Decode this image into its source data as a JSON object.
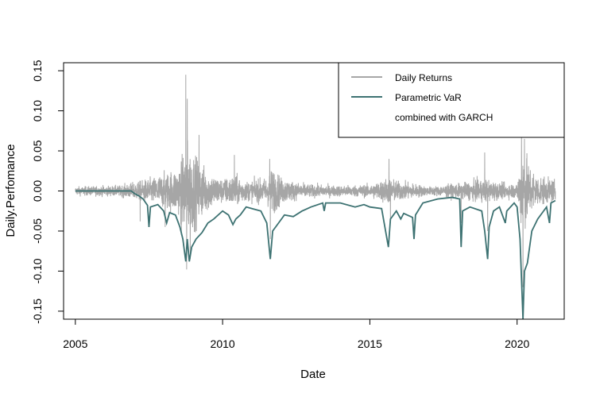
{
  "chart_data": {
    "type": "line",
    "title": "",
    "xlabel": "Date",
    "ylabel": "Daily.Perfomance",
    "xlim": [
      2004.6,
      2021.6
    ],
    "ylim": [
      -0.16,
      0.16
    ],
    "x_ticks": [
      2005,
      2010,
      2015,
      2020
    ],
    "x_tick_labels": [
      "2005",
      "2010",
      "2015",
      "2020"
    ],
    "y_ticks": [
      0.15,
      0.1,
      0.05,
      0.0,
      -0.05,
      -0.1,
      -0.15
    ],
    "y_tick_labels": [
      "0.15",
      "0.10",
      "0.05",
      "0.00",
      "-0.05",
      "-0.10",
      "-0.15"
    ],
    "grid": false,
    "legend": {
      "position": "top-right",
      "entries": [
        "Daily Returns",
        "Parametric VaR",
        "combined with GARCH"
      ]
    },
    "series": [
      {
        "name": "Daily Returns",
        "color": "#a6a6a6",
        "style": "volatile daily returns",
        "date_range": [
          2005.0,
          2021.3
        ],
        "volatility_profile": [
          [
            2005.0,
            0.004
          ],
          [
            2006.5,
            0.005
          ],
          [
            2007.0,
            0.008
          ],
          [
            2007.6,
            0.012
          ],
          [
            2008.0,
            0.016
          ],
          [
            2008.5,
            0.022
          ],
          [
            2008.8,
            0.045
          ],
          [
            2009.0,
            0.035
          ],
          [
            2009.5,
            0.018
          ],
          [
            2010.0,
            0.011
          ],
          [
            2010.4,
            0.015
          ],
          [
            2010.8,
            0.009
          ],
          [
            2011.5,
            0.012
          ],
          [
            2011.7,
            0.022
          ],
          [
            2012.0,
            0.012
          ],
          [
            2012.5,
            0.008
          ],
          [
            2013.0,
            0.006
          ],
          [
            2014.0,
            0.005
          ],
          [
            2015.0,
            0.006
          ],
          [
            2015.6,
            0.012
          ],
          [
            2016.0,
            0.009
          ],
          [
            2016.5,
            0.007
          ],
          [
            2017.0,
            0.004
          ],
          [
            2018.0,
            0.007
          ],
          [
            2018.9,
            0.011
          ],
          [
            2019.5,
            0.007
          ],
          [
            2020.0,
            0.007
          ],
          [
            2020.2,
            0.045
          ],
          [
            2020.4,
            0.025
          ],
          [
            2020.7,
            0.014
          ],
          [
            2021.3,
            0.01
          ]
        ],
        "extremes": [
          [
            2007.2,
            -0.038
          ],
          [
            2008.05,
            -0.045
          ],
          [
            2008.6,
            -0.055
          ],
          [
            2008.75,
            0.145
          ],
          [
            2008.8,
            0.115
          ],
          [
            2008.78,
            -0.098
          ],
          [
            2008.9,
            -0.085
          ],
          [
            2009.2,
            0.07
          ],
          [
            2010.4,
            0.045
          ],
          [
            2011.6,
            0.04
          ],
          [
            2011.62,
            -0.06
          ],
          [
            2015.65,
            0.04
          ],
          [
            2015.7,
            -0.04
          ],
          [
            2018.1,
            -0.04
          ],
          [
            2018.9,
            0.048
          ],
          [
            2019.0,
            -0.05
          ],
          [
            2020.15,
            0.07
          ],
          [
            2020.2,
            -0.12
          ],
          [
            2020.25,
            0.065
          ]
        ]
      },
      {
        "name": "Parametric VaR",
        "color": "#3d7272",
        "style": "GARCH VaR line",
        "points": [
          [
            2005.0,
            0.0
          ],
          [
            2006.9,
            0.0
          ],
          [
            2007.0,
            -0.003
          ],
          [
            2007.15,
            -0.006
          ],
          [
            2007.3,
            -0.01
          ],
          [
            2007.45,
            -0.018
          ],
          [
            2007.5,
            -0.045
          ],
          [
            2007.55,
            -0.02
          ],
          [
            2007.8,
            -0.017
          ],
          [
            2008.0,
            -0.025
          ],
          [
            2008.1,
            -0.04
          ],
          [
            2008.2,
            -0.027
          ],
          [
            2008.4,
            -0.03
          ],
          [
            2008.55,
            -0.045
          ],
          [
            2008.65,
            -0.06
          ],
          [
            2008.75,
            -0.088
          ],
          [
            2008.8,
            -0.06
          ],
          [
            2008.87,
            -0.088
          ],
          [
            2008.95,
            -0.07
          ],
          [
            2009.1,
            -0.06
          ],
          [
            2009.3,
            -0.052
          ],
          [
            2009.5,
            -0.04
          ],
          [
            2009.7,
            -0.035
          ],
          [
            2010.0,
            -0.025
          ],
          [
            2010.2,
            -0.03
          ],
          [
            2010.35,
            -0.042
          ],
          [
            2010.45,
            -0.035
          ],
          [
            2010.6,
            -0.03
          ],
          [
            2010.8,
            -0.02
          ],
          [
            2011.0,
            -0.022
          ],
          [
            2011.3,
            -0.025
          ],
          [
            2011.5,
            -0.04
          ],
          [
            2011.62,
            -0.085
          ],
          [
            2011.7,
            -0.05
          ],
          [
            2011.9,
            -0.04
          ],
          [
            2012.1,
            -0.03
          ],
          [
            2012.4,
            -0.032
          ],
          [
            2012.7,
            -0.025
          ],
          [
            2013.0,
            -0.02
          ],
          [
            2013.4,
            -0.015
          ],
          [
            2013.45,
            -0.025
          ],
          [
            2013.5,
            -0.015
          ],
          [
            2014.0,
            -0.015
          ],
          [
            2014.5,
            -0.02
          ],
          [
            2014.8,
            -0.017
          ],
          [
            2015.0,
            -0.02
          ],
          [
            2015.4,
            -0.022
          ],
          [
            2015.63,
            -0.07
          ],
          [
            2015.7,
            -0.035
          ],
          [
            2015.9,
            -0.025
          ],
          [
            2016.05,
            -0.035
          ],
          [
            2016.15,
            -0.028
          ],
          [
            2016.45,
            -0.033
          ],
          [
            2016.5,
            -0.06
          ],
          [
            2016.55,
            -0.03
          ],
          [
            2016.8,
            -0.015
          ],
          [
            2017.3,
            -0.01
          ],
          [
            2017.8,
            -0.008
          ],
          [
            2018.05,
            -0.01
          ],
          [
            2018.1,
            -0.07
          ],
          [
            2018.15,
            -0.025
          ],
          [
            2018.4,
            -0.02
          ],
          [
            2018.8,
            -0.025
          ],
          [
            2018.9,
            -0.05
          ],
          [
            2019.0,
            -0.085
          ],
          [
            2019.05,
            -0.045
          ],
          [
            2019.2,
            -0.025
          ],
          [
            2019.4,
            -0.02
          ],
          [
            2019.6,
            -0.04
          ],
          [
            2019.65,
            -0.025
          ],
          [
            2019.9,
            -0.015
          ],
          [
            2020.0,
            -0.02
          ],
          [
            2020.1,
            -0.06
          ],
          [
            2020.2,
            -0.16
          ],
          [
            2020.25,
            -0.1
          ],
          [
            2020.35,
            -0.09
          ],
          [
            2020.5,
            -0.05
          ],
          [
            2020.7,
            -0.035
          ],
          [
            2020.9,
            -0.025
          ],
          [
            2021.0,
            -0.02
          ],
          [
            2021.1,
            -0.04
          ],
          [
            2021.15,
            -0.015
          ],
          [
            2021.3,
            -0.012
          ]
        ]
      }
    ]
  }
}
